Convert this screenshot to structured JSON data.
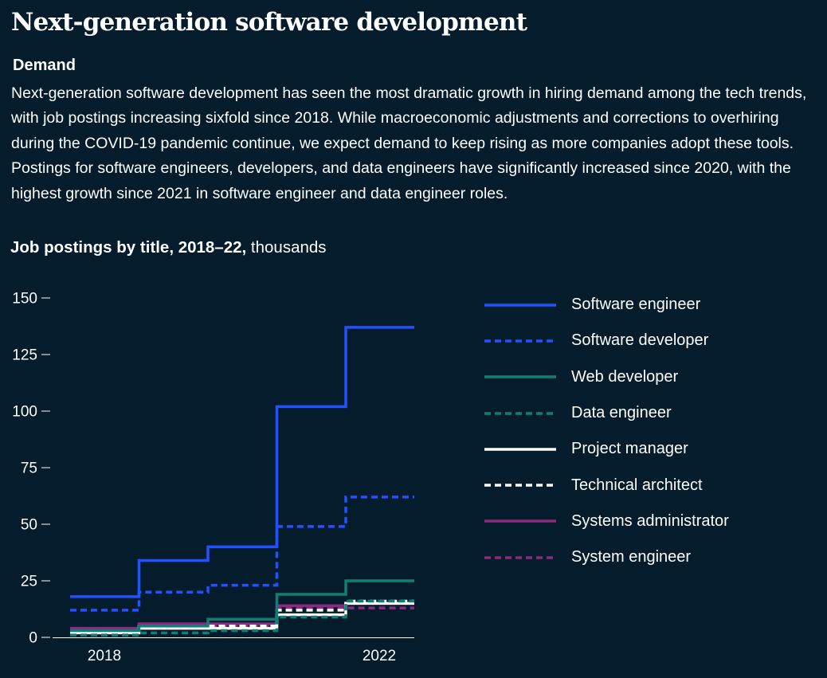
{
  "header": {
    "title": "Next-generation software development",
    "section": "Demand",
    "body": "Next-generation software development has seen the most dramatic growth in hiring demand among the tech trends, with job postings increasing sixfold since 2018. While macroeconomic adjustments and corrections to overhiring during the COVID-19 pandemic continue, we expect demand to keep rising as more companies adopt these tools.  Postings for software engineers, developers, and data engineers have significantly increased since 2020, with the highest growth since 2021 in software engineer and data engineer roles."
  },
  "chart_title": {
    "bold": "Job postings by title, 2018–22,",
    "unit": " thousands"
  },
  "chart_data": {
    "type": "line",
    "step": true,
    "x": [
      2018,
      2019,
      2020,
      2021,
      2022
    ],
    "x_ticks": [
      "2018",
      "2022"
    ],
    "y_ticks": [
      "150",
      "125",
      "100",
      "75",
      "50",
      "25",
      "0"
    ],
    "ylim": [
      0,
      150
    ],
    "grid": false,
    "legend_position": "right",
    "series": [
      {
        "name": "Software engineer",
        "values": [
          18,
          34,
          40,
          102,
          137
        ],
        "color": "#2251ff",
        "dash": false
      },
      {
        "name": "Software developer",
        "values": [
          12,
          20,
          23,
          49,
          62
        ],
        "color": "#2251ff",
        "dash": true
      },
      {
        "name": "Web developer",
        "values": [
          3,
          5,
          8,
          19,
          25
        ],
        "color": "#0f7e73",
        "dash": false
      },
      {
        "name": "Data engineer",
        "values": [
          1,
          2,
          3,
          9,
          16
        ],
        "color": "#0f7e73",
        "dash": true
      },
      {
        "name": "Project manager",
        "values": [
          2,
          4,
          4,
          10,
          15
        ],
        "color": "#ffffff",
        "dash": false
      },
      {
        "name": "Technical architect",
        "values": [
          2,
          5,
          5,
          12,
          16
        ],
        "color": "#ffffff",
        "dash": true
      },
      {
        "name": "Systems administrator",
        "values": [
          4,
          6,
          6,
          14,
          15
        ],
        "color": "#8c2a7f",
        "dash": false
      },
      {
        "name": "System engineer",
        "values": [
          3,
          5,
          5,
          13,
          13
        ],
        "color": "#8c2a7f",
        "dash": true
      }
    ]
  }
}
